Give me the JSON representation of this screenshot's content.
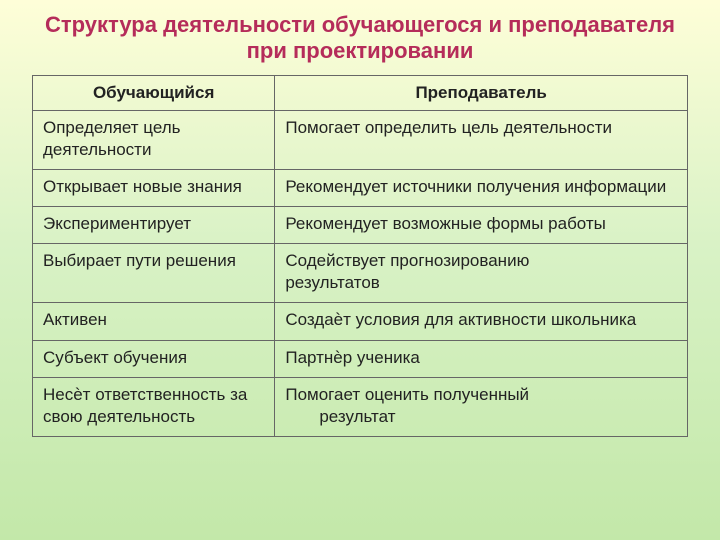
{
  "title": "Структура деятельности обучающегося и преподавателя при проектировании",
  "colors": {
    "title": "#b52c5a",
    "border": "#666666",
    "text": "#222222",
    "bg_top": "#fefed8",
    "bg_mid": "#d9f2c6",
    "bg_bottom": "#c3e8a9"
  },
  "table": {
    "type": "table",
    "columns": [
      "Обучающийся",
      "Преподаватель"
    ],
    "column_widths_pct": [
      37,
      63
    ],
    "header_fontsize": 17,
    "cell_fontsize": 17,
    "rows": [
      {
        "left": "Определяет цель деятельности",
        "right": " Помогает определить цель деятельности"
      },
      {
        "left": "Открывает новые знания",
        "right": " Рекомендует источники получения информации"
      },
      {
        "left": "Экспериментирует",
        "right": " Рекомендует возможные формы работы"
      },
      {
        "left": "Выбирает пути решения",
        "right": " Содействует прогнозированию",
        "right_extra": " результатов"
      },
      {
        "left": "Активен",
        "right": "Создаѐт условия для активности школьника"
      },
      {
        "left": "Субъект обучения",
        "right": " Партнѐр ученика"
      },
      {
        "left": "Несѐт ответственность за свою деятельность",
        "right": "Помогает оценить полученный",
        "right_extra_indent": "результат"
      }
    ]
  }
}
